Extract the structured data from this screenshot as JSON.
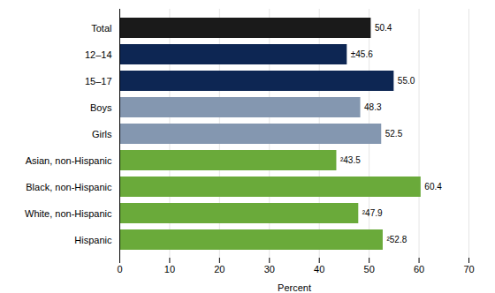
{
  "chart_data": {
    "type": "bar",
    "orientation": "horizontal",
    "categories": [
      "Total",
      "12–14",
      "15–17",
      "Boys",
      "Girls",
      "Asian, non-Hispanic",
      "Black, non-Hispanic",
      "White, non-Hispanic",
      "Hispanic"
    ],
    "values": [
      50.4,
      45.6,
      55.0,
      48.3,
      52.5,
      43.5,
      60.4,
      47.9,
      52.8
    ],
    "value_labels": [
      "50.4",
      "±45.6",
      "55.0",
      "48.3",
      "52.5",
      "²43.5",
      "60.4",
      "²47.9",
      "²52.8"
    ],
    "colors": [
      "#1a1a1a",
      "#0d2653",
      "#0d2653",
      "#8497b0",
      "#8497b0",
      "#6aaa3a",
      "#6aaa3a",
      "#6aaa3a",
      "#6aaa3a"
    ],
    "xlabel": "Percent",
    "xlim": [
      0,
      70
    ],
    "xticks": [
      0,
      10,
      20,
      30,
      40,
      50,
      60,
      70
    ],
    "grid": true,
    "data_labels": true
  }
}
